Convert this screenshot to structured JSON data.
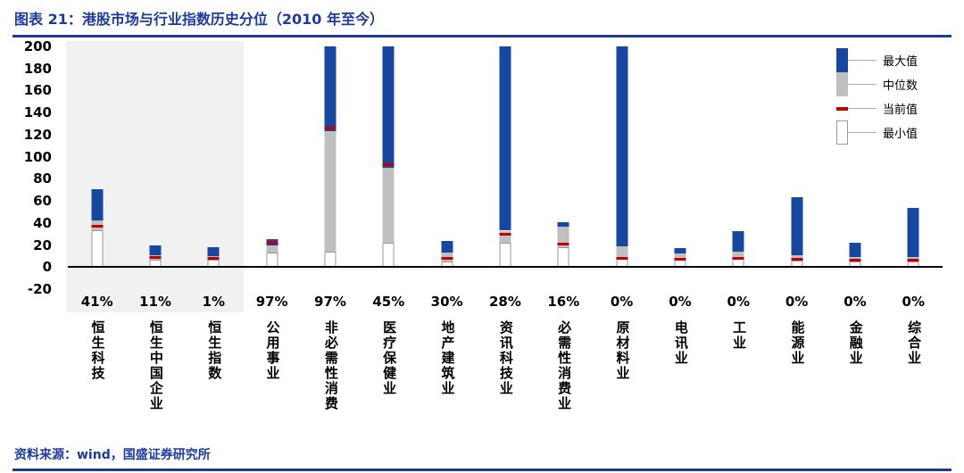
{
  "header": {
    "title": "图表 21：港股市场与行业指数历史分位（2010 年至今）"
  },
  "footer": {
    "source": "资料来源：wind，国盛证券研究所"
  },
  "colors": {
    "accent": "#1E3A9E",
    "bar_max": "#17479E",
    "bar_median": "#BFBFBF",
    "bar_current": "#C00000",
    "bar_min": "#FFFFFF",
    "highlight_bg": "#F1F1F1",
    "axis": "#000000"
  },
  "legend": {
    "items": [
      {
        "key": "max",
        "label": "最大值"
      },
      {
        "key": "median",
        "label": "中位数"
      },
      {
        "key": "current",
        "label": "当前值"
      },
      {
        "key": "min",
        "label": "最小值"
      }
    ]
  },
  "chart_data": {
    "type": "bar",
    "subtype": "floating-range-min-median-current-max",
    "title": "港股市场与行业指数历史分位（2010 年至今）",
    "ylim": [
      -20,
      200
    ],
    "yticks": [
      200,
      180,
      160,
      140,
      120,
      100,
      80,
      60,
      40,
      20,
      0,
      -20
    ],
    "clip_max": 200,
    "grid": false,
    "legend_position": "top-right",
    "categories": [
      "恒生科技",
      "恒生中国企业",
      "恒生指数",
      "公用事业",
      "非必需性消费",
      "医疗保健业",
      "地产建筑业",
      "资讯科技业",
      "必需性消费业",
      "原材料业",
      "电讯业",
      "工业",
      "能源业",
      "金融业",
      "综合业"
    ],
    "current_percentile_labels": [
      "41%",
      "11%",
      "1%",
      "97%",
      "97%",
      "45%",
      "30%",
      "28%",
      "16%",
      "0%",
      "0%",
      "0%",
      "0%",
      "0%",
      "0%"
    ],
    "series": [
      {
        "name": "最小值",
        "values": [
          33,
          7,
          7,
          13,
          14,
          22,
          5,
          22,
          18,
          8,
          7,
          8,
          6,
          5,
          5
        ]
      },
      {
        "name": "中位数",
        "values": [
          42,
          11,
          10,
          20,
          123,
          90,
          13,
          33,
          37,
          19,
          12,
          14,
          11,
          9,
          9
        ]
      },
      {
        "name": "当前值",
        "values": [
          37,
          9,
          8,
          22,
          126,
          93,
          8,
          30,
          21,
          8,
          7,
          8,
          7,
          6,
          6
        ]
      },
      {
        "name": "最大值",
        "values": [
          71,
          20,
          18,
          25,
          200,
          200,
          24,
          200,
          41,
          200,
          17,
          33,
          63,
          22,
          54
        ]
      }
    ],
    "max_clipped_at_top": [
      false,
      false,
      false,
      false,
      true,
      true,
      false,
      true,
      false,
      true,
      false,
      false,
      false,
      false,
      false
    ],
    "highlighted_categories": [
      "恒生科技",
      "恒生中国企业",
      "恒生指数"
    ]
  }
}
